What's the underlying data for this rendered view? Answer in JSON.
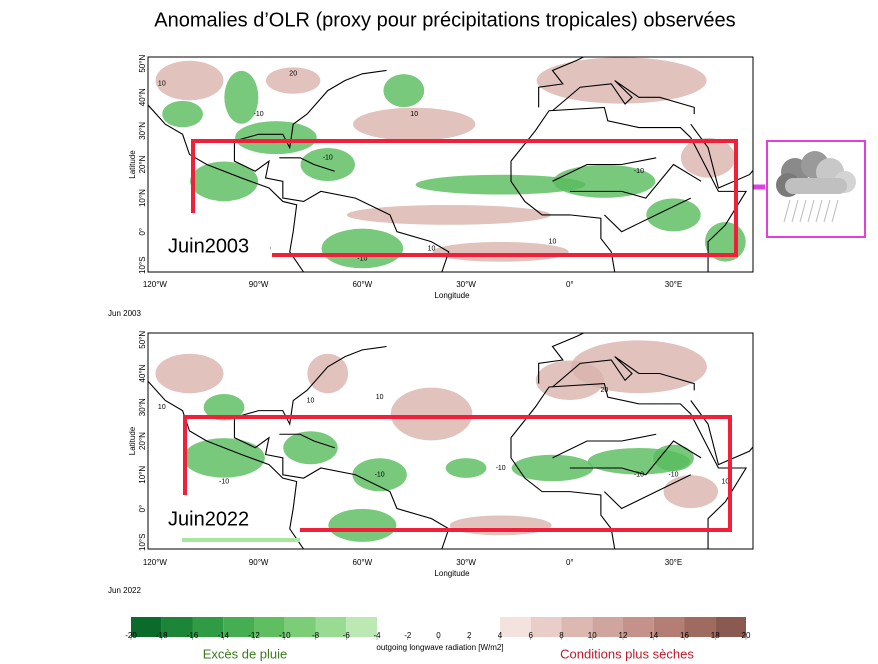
{
  "title": "Anomalies d’OLR (proxy pour précipitations tropicales) observées",
  "maps": [
    {
      "lat_labels": [
        "50°N",
        "40°N",
        "30°N",
        "20°N",
        "10°N",
        "0°",
        "10°S"
      ],
      "lon_labels": [
        "120°W",
        "90°W",
        "60°W",
        "30°W",
        "0°",
        "30°E"
      ],
      "ylabel": "Latitude",
      "xlabel": "Longitude",
      "region_label": "Juin2003",
      "caption": "Jun 2003",
      "contour_labels": [
        "10",
        "-10",
        "20",
        "-10",
        "10",
        "-10",
        "-10",
        "10",
        "-10",
        "10"
      ]
    },
    {
      "lat_labels": [
        "50°N",
        "40°N",
        "30°N",
        "20°N",
        "10°N",
        "0°",
        "10°S"
      ],
      "lon_labels": [
        "120°W",
        "90°W",
        "60°W",
        "30°W",
        "0°",
        "30°E"
      ],
      "ylabel": "Latitude",
      "xlabel": "Longitude",
      "region_label": "Juin2022",
      "caption": "Jun 2022",
      "contour_labels": [
        "10",
        "-10",
        "10",
        "10",
        "-10",
        "20",
        "-10",
        "-10",
        "10",
        "-10"
      ]
    }
  ],
  "colorbar": {
    "ticks": [
      -20,
      -18,
      -16,
      -14,
      -12,
      -10,
      -8,
      -6,
      -4,
      -2,
      0,
      2,
      4,
      6,
      8,
      10,
      12,
      14,
      16,
      18,
      20
    ],
    "colors": [
      "#0b6b2a",
      "#1d8538",
      "#2f9c45",
      "#45ae52",
      "#5fbf60",
      "#7ccd78",
      "#9adb93",
      "#bce9b3",
      "#ffffff",
      "#ffffff",
      "#ffffff",
      "#ffffff",
      "#f4e2de",
      "#e9cdc8",
      "#ddb8b1",
      "#d0a59d",
      "#c4928a",
      "#b47e74",
      "#9f6b61",
      "#8a5a50"
    ],
    "label": "outgoing longwave radiation [W/m2]",
    "left_label": "Excès de pluie",
    "right_label": "Conditions plus sèches"
  }
}
